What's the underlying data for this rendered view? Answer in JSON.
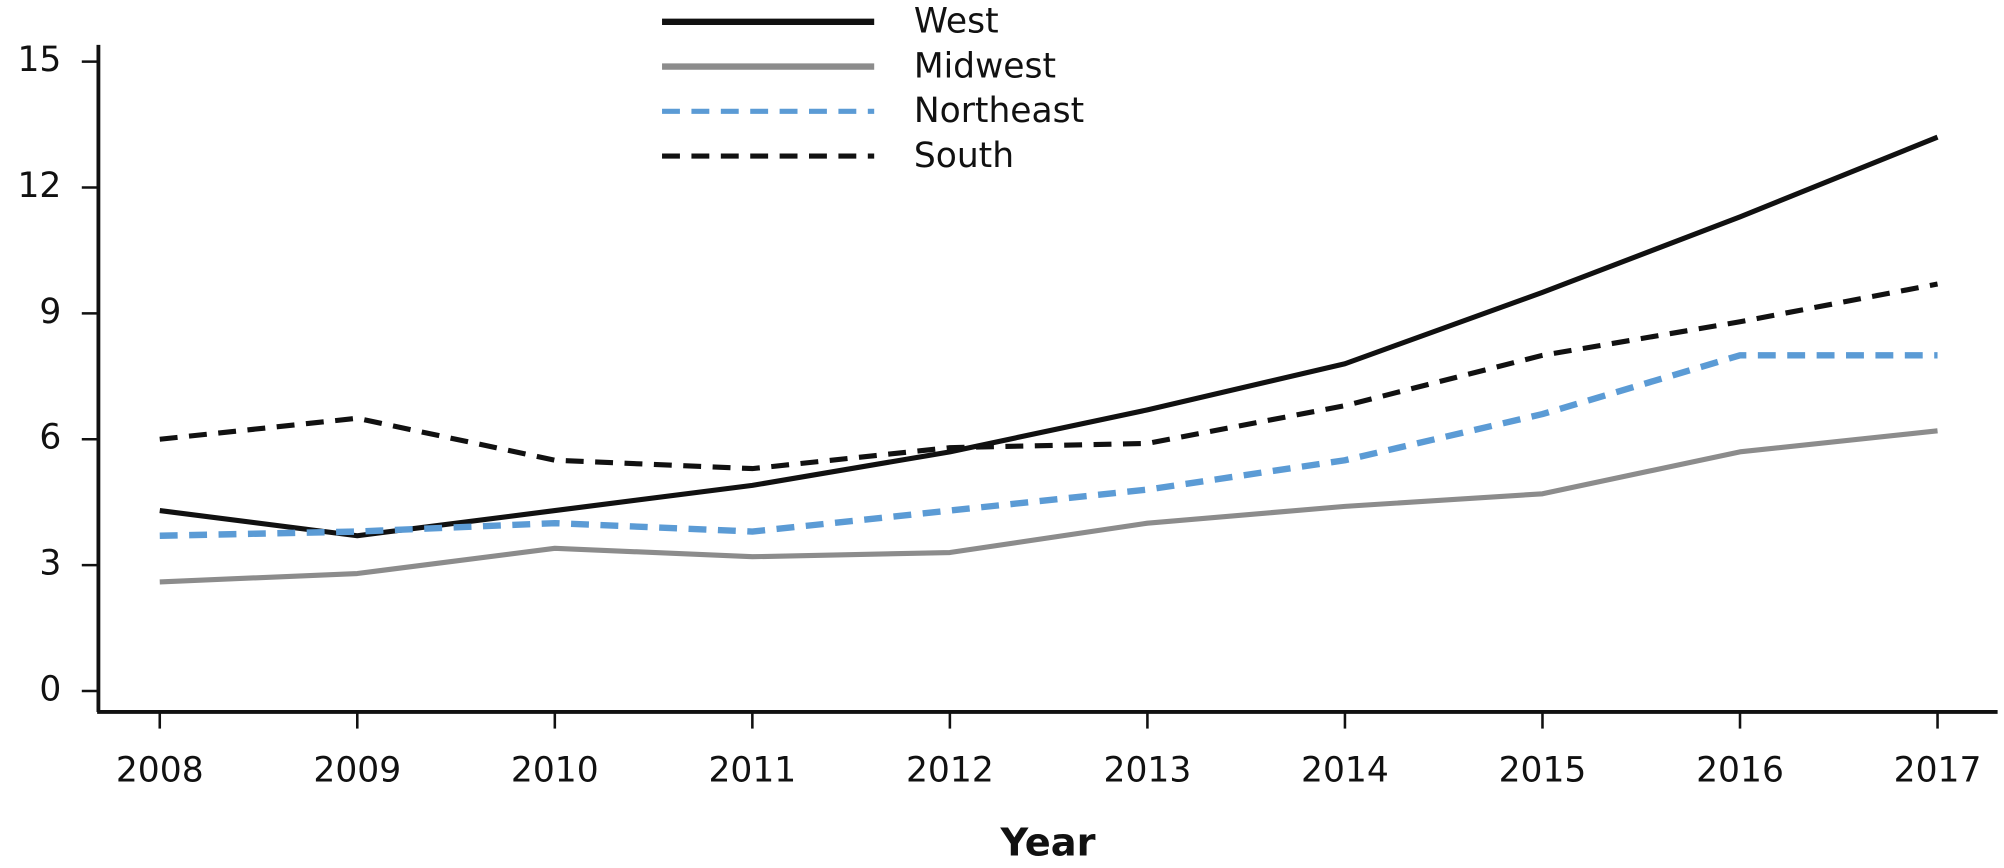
{
  "chart_data": {
    "type": "line",
    "x_label": "Year",
    "categories": [
      "2008",
      "2009",
      "2010",
      "2011",
      "2012",
      "2013",
      "2014",
      "2015",
      "2016",
      "2017"
    ],
    "series": [
      {
        "name": "West",
        "color": "#111111",
        "dashed": false,
        "values": [
          4.3,
          3.7,
          4.3,
          4.9,
          5.7,
          6.7,
          7.8,
          9.5,
          11.3,
          13.2
        ]
      },
      {
        "name": "Midwest",
        "color": "#8c8c8c",
        "dashed": false,
        "values": [
          2.6,
          2.8,
          3.4,
          3.2,
          3.3,
          4.0,
          4.4,
          4.7,
          5.7,
          6.2
        ]
      },
      {
        "name": "Northeast",
        "color": "#5b9bd5",
        "dashed": true,
        "values": [
          3.7,
          3.8,
          4.0,
          3.8,
          4.3,
          4.8,
          5.5,
          6.6,
          8.0,
          8.0
        ]
      },
      {
        "name": "South",
        "color": "#111111",
        "dashed": true,
        "values": [
          6.0,
          6.5,
          5.5,
          5.3,
          5.8,
          5.9,
          6.8,
          8.0,
          8.8,
          9.7
        ]
      }
    ],
    "ylim": [
      -0.5,
      15.4
    ],
    "yticks": [
      0,
      3,
      6,
      9,
      12,
      15
    ],
    "grid": false,
    "legend": "top"
  }
}
